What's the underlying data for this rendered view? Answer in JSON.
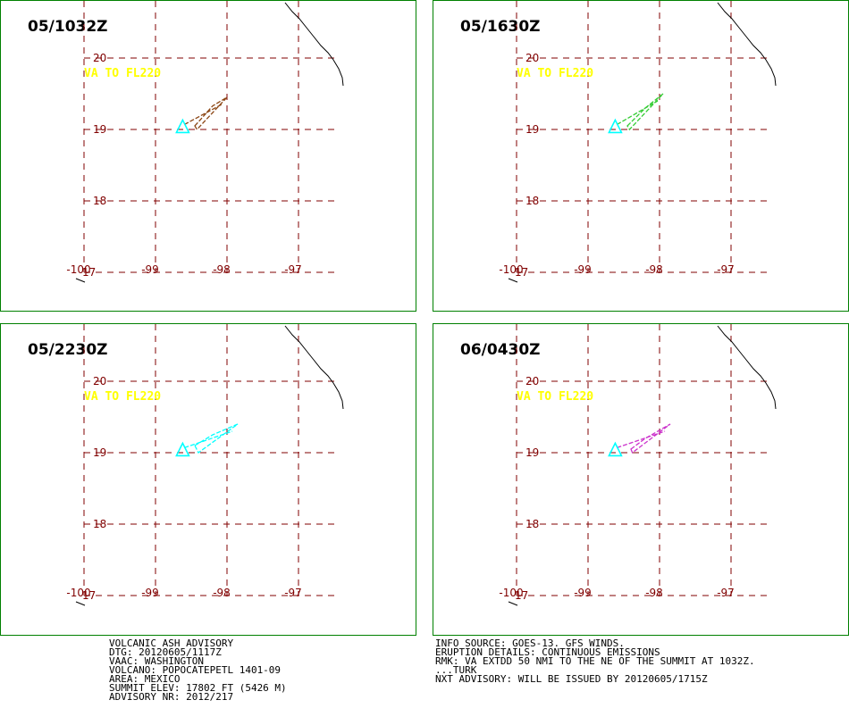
{
  "panels": [
    {
      "time": "05/1032Z",
      "color": "#8b4513",
      "ash_polygon": [
        [
          -98.45,
          19.05
        ],
        [
          -98.2,
          19.33
        ],
        [
          -98.0,
          19.45
        ],
        [
          -98.42,
          19.0
        ]
      ]
    },
    {
      "time": "05/1630Z",
      "color": "#33cc33",
      "ash_polygon": [
        [
          -98.45,
          19.05
        ],
        [
          -98.2,
          19.3
        ],
        [
          -97.95,
          19.5
        ],
        [
          -98.42,
          19.0
        ]
      ]
    },
    {
      "time": "05/2230Z",
      "color": "#00ffff",
      "ash_polygon": [
        [
          -98.45,
          19.1
        ],
        [
          -98.2,
          19.25
        ],
        [
          -97.85,
          19.4
        ],
        [
          -98.4,
          19.0
        ]
      ]
    },
    {
      "time": "06/0430Z",
      "color": "#cc33cc",
      "ash_polygon": [
        [
          -98.4,
          19.05
        ],
        [
          -98.2,
          19.2
        ],
        [
          -97.85,
          19.4
        ],
        [
          -98.38,
          19.0
        ]
      ]
    }
  ],
  "map": {
    "va_label": "VA TO FL220",
    "lat_labels": [
      "20",
      "19",
      "18",
      "17"
    ],
    "lon_labels": [
      "-100",
      "-99",
      "-98",
      "-97"
    ],
    "volcano_lon": -98.62,
    "volcano_lat": 19.02,
    "volcano_color": "#00ffff",
    "grid_color": "#800000",
    "label_color": "#ffff00"
  },
  "advisory_left": [
    "VOLCANIC ASH ADVISORY",
    "DTG: 20120605/1117Z",
    "VAAC: WASHINGTON",
    "VOLCANO: POPOCATEPETL 1401-09",
    "AREA: MEXICO",
    "SUMMIT ELEV: 17802 FT (5426 M)",
    "ADVISORY NR: 2012/217"
  ],
  "advisory_right": [
    "INFO SOURCE: GOES-13. GFS WINDS.",
    "ERUPTION DETAILS: CONTINUOUS EMISSIONS",
    "RMK: VA EXTDD 50 NMI TO THE NE OF THE SUMMIT AT 1032Z.",
    "...TURK",
    "NXT ADVISORY: WILL BE ISSUED BY 20120605/1715Z"
  ]
}
